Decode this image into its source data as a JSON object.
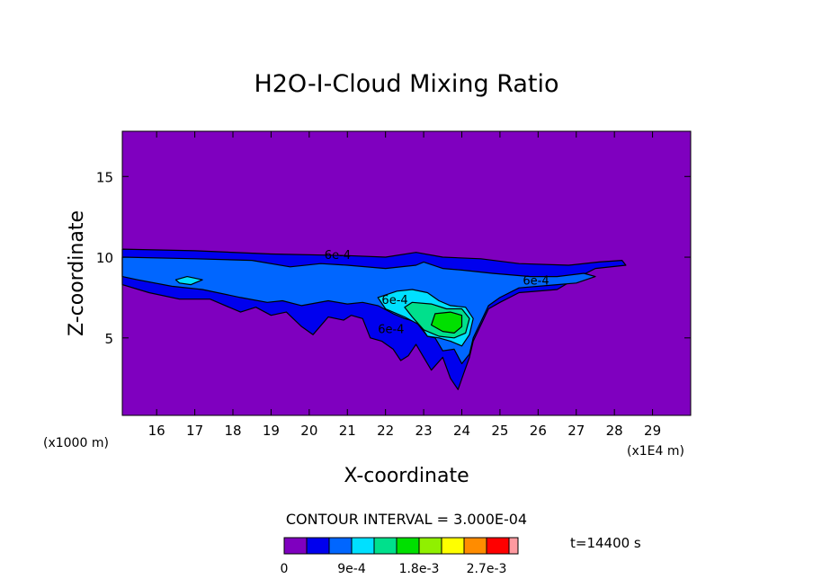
{
  "chart_data": {
    "type": "heatmap",
    "title": "H2O-I-Cloud Mixing Ratio",
    "xlabel": "X-coordinate",
    "ylabel": "Z-coordinate",
    "xlim": [
      15.1,
      30.0
    ],
    "ylim": [
      0.2,
      17.8
    ],
    "x_ticks": [
      16,
      17,
      18,
      19,
      20,
      21,
      22,
      23,
      24,
      25,
      26,
      27,
      28,
      29
    ],
    "y_ticks": [
      5,
      10,
      15
    ],
    "x_unit_left": "(x1000 m)",
    "x_unit_right": "(x1E4 m)",
    "contour_interval": "CONTOUR INTERVAL = 3.000E-04",
    "time_label": "t=14400 s",
    "contour_labels": [
      {
        "text": "6e-4",
        "x": 20.4,
        "y": 9.9
      },
      {
        "text": "6e-4",
        "x": 25.6,
        "y": 8.3
      },
      {
        "text": "6e-4",
        "x": 21.9,
        "y": 7.1
      },
      {
        "text": "6e-4",
        "x": 21.8,
        "y": 5.3
      }
    ],
    "levels": [
      {
        "lo": 0.0,
        "hi": 0.0003,
        "color": "#7f00bf"
      },
      {
        "lo": 0.0003,
        "hi": 0.0006,
        "color": "#0000ee"
      },
      {
        "lo": 0.0006,
        "hi": 0.0009,
        "color": "#0066ff"
      },
      {
        "lo": 0.0009,
        "hi": 0.0012,
        "color": "#00e0ff"
      },
      {
        "lo": 0.0012,
        "hi": 0.0015,
        "color": "#00e08c"
      },
      {
        "lo": 0.0015,
        "hi": 0.0018,
        "color": "#00e000"
      },
      {
        "lo": 0.0018,
        "hi": 0.0021,
        "color": "#90f000"
      },
      {
        "lo": 0.0021,
        "hi": 0.0024,
        "color": "#ffff00"
      },
      {
        "lo": 0.0024,
        "hi": 0.0027,
        "color": "#ff8c00"
      },
      {
        "lo": 0.0027,
        "hi": 0.003,
        "color": "#ff0000"
      },
      {
        "lo": 0.003,
        "hi": null,
        "color": "#ff9aa0"
      }
    ],
    "colorbar_labels": [
      "0",
      "9e-4",
      "1.8e-3",
      "2.7e-3"
    ],
    "regions": [
      {
        "level": 1,
        "points": [
          [
            15.1,
            10.5
          ],
          [
            17,
            10.4
          ],
          [
            19,
            10.2
          ],
          [
            21,
            10.1
          ],
          [
            22,
            10.0
          ],
          [
            22.8,
            10.3
          ],
          [
            23.5,
            10.0
          ],
          [
            24.5,
            9.9
          ],
          [
            25.5,
            9.6
          ],
          [
            26.8,
            9.5
          ],
          [
            27.6,
            9.7
          ],
          [
            28.2,
            9.8
          ],
          [
            28.3,
            9.5
          ],
          [
            27.5,
            9.3
          ],
          [
            27,
            8.7
          ],
          [
            26.5,
            8.0
          ],
          [
            25.5,
            7.8
          ],
          [
            25,
            7.2
          ],
          [
            24.7,
            6.8
          ],
          [
            24.5,
            5.8
          ],
          [
            24.3,
            4.8
          ],
          [
            24.2,
            3.8
          ],
          [
            24.05,
            2.8
          ],
          [
            23.9,
            1.8
          ],
          [
            23.7,
            2.5
          ],
          [
            23.5,
            3.8
          ],
          [
            23.2,
            3.0
          ],
          [
            23,
            3.8
          ],
          [
            22.8,
            4.6
          ],
          [
            22.6,
            3.9
          ],
          [
            22.4,
            3.6
          ],
          [
            22.2,
            4.3
          ],
          [
            21.9,
            4.8
          ],
          [
            21.6,
            5.0
          ],
          [
            21.4,
            6.2
          ],
          [
            21.1,
            6.4
          ],
          [
            20.9,
            6.1
          ],
          [
            20.5,
            6.3
          ],
          [
            20.1,
            5.2
          ],
          [
            19.8,
            5.7
          ],
          [
            19.4,
            6.6
          ],
          [
            19,
            6.4
          ],
          [
            18.6,
            6.9
          ],
          [
            18.2,
            6.6
          ],
          [
            17.4,
            7.4
          ],
          [
            16.6,
            7.4
          ],
          [
            15.8,
            7.8
          ],
          [
            15.1,
            8.3
          ]
        ]
      },
      {
        "level": 2,
        "points": [
          [
            15.1,
            10.0
          ],
          [
            17,
            9.9
          ],
          [
            18.5,
            9.8
          ],
          [
            19.5,
            9.4
          ],
          [
            20.3,
            9.6
          ],
          [
            21,
            9.5
          ],
          [
            22,
            9.3
          ],
          [
            22.8,
            9.5
          ],
          [
            23,
            9.7
          ],
          [
            23.5,
            9.3
          ],
          [
            24,
            9.2
          ],
          [
            24.8,
            9.0
          ],
          [
            25.8,
            8.8
          ],
          [
            26.5,
            8.8
          ],
          [
            27.2,
            9.0
          ],
          [
            27.5,
            8.8
          ],
          [
            27,
            8.4
          ],
          [
            26.5,
            8.3
          ],
          [
            25.5,
            8.1
          ],
          [
            25,
            7.5
          ],
          [
            24.7,
            7.0
          ],
          [
            24.5,
            6.0
          ],
          [
            24.3,
            5.0
          ],
          [
            24.2,
            4.0
          ],
          [
            24,
            3.4
          ],
          [
            23.8,
            4.3
          ],
          [
            23.5,
            4.2
          ],
          [
            23.3,
            5.0
          ],
          [
            23.1,
            5.1
          ],
          [
            22.8,
            6.0
          ],
          [
            22.5,
            6.2
          ],
          [
            22.2,
            6.5
          ],
          [
            21.8,
            7.0
          ],
          [
            21.4,
            7.2
          ],
          [
            21,
            7.1
          ],
          [
            20.5,
            7.3
          ],
          [
            19.8,
            7.0
          ],
          [
            19.3,
            7.3
          ],
          [
            18.9,
            7.2
          ],
          [
            18.2,
            7.5
          ],
          [
            17.2,
            8.0
          ],
          [
            16.4,
            8.2
          ],
          [
            15.5,
            8.6
          ],
          [
            15.1,
            8.8
          ]
        ]
      },
      {
        "level": 3,
        "points": [
          [
            21.8,
            7.5
          ],
          [
            22.3,
            7.9
          ],
          [
            22.7,
            8.0
          ],
          [
            23.1,
            7.8
          ],
          [
            23.4,
            7.3
          ],
          [
            23.7,
            7.0
          ],
          [
            24.1,
            6.9
          ],
          [
            24.3,
            6.2
          ],
          [
            24.2,
            5.2
          ],
          [
            24.0,
            4.5
          ],
          [
            23.7,
            4.8
          ],
          [
            23.4,
            5.0
          ],
          [
            23.1,
            5.1
          ],
          [
            22.9,
            5.8
          ],
          [
            22.5,
            6.3
          ],
          [
            22.0,
            6.8
          ]
        ]
      },
      {
        "level": 3,
        "points": [
          [
            16.5,
            8.6
          ],
          [
            16.8,
            8.8
          ],
          [
            17.2,
            8.6
          ],
          [
            16.9,
            8.3
          ],
          [
            16.6,
            8.4
          ]
        ]
      },
      {
        "level": 4,
        "points": [
          [
            22.7,
            7.2
          ],
          [
            23.2,
            7.1
          ],
          [
            23.6,
            6.8
          ],
          [
            24.0,
            6.8
          ],
          [
            24.2,
            6.2
          ],
          [
            24.1,
            5.3
          ],
          [
            23.8,
            5.0
          ],
          [
            23.4,
            5.1
          ],
          [
            23.0,
            5.5
          ],
          [
            22.7,
            6.3
          ],
          [
            22.5,
            6.9
          ]
        ]
      },
      {
        "level": 5,
        "points": [
          [
            23.3,
            6.5
          ],
          [
            23.7,
            6.6
          ],
          [
            24.0,
            6.4
          ],
          [
            24.0,
            5.7
          ],
          [
            23.8,
            5.3
          ],
          [
            23.5,
            5.4
          ],
          [
            23.2,
            5.8
          ]
        ]
      }
    ]
  }
}
